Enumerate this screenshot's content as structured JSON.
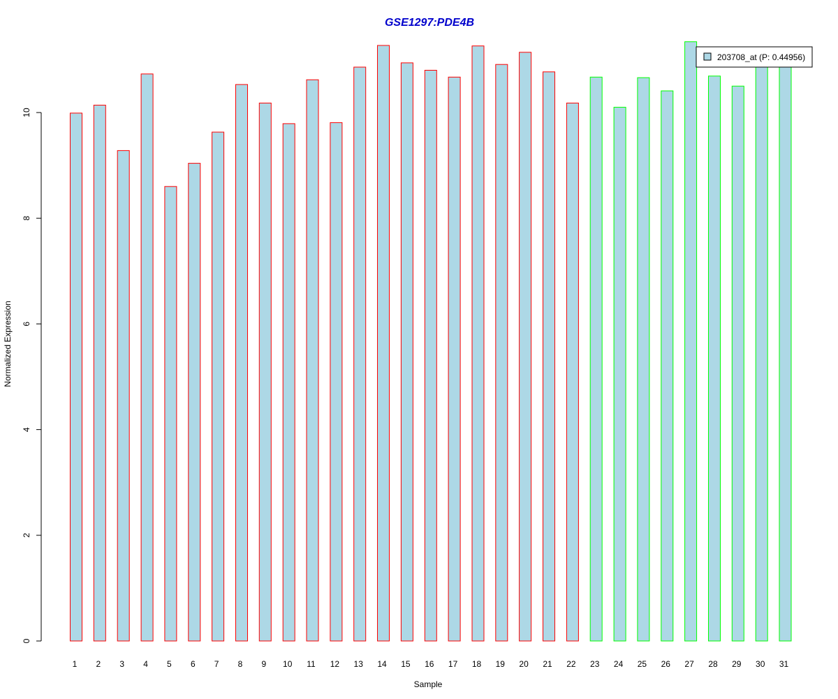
{
  "chart_data": {
    "type": "bar",
    "title": "GSE1297:PDE4B",
    "xlabel": "Sample",
    "ylabel": "Normalized Expression",
    "ylim": [
      0,
      11.5
    ],
    "yticks": [
      0,
      2,
      4,
      6,
      8,
      10
    ],
    "grid": false,
    "categories": [
      "1",
      "2",
      "3",
      "4",
      "5",
      "6",
      "7",
      "8",
      "9",
      "10",
      "11",
      "12",
      "13",
      "14",
      "15",
      "16",
      "17",
      "18",
      "19",
      "20",
      "21",
      "22",
      "23",
      "24",
      "25",
      "26",
      "27",
      "28",
      "29",
      "30",
      "31"
    ],
    "values": [
      9.99,
      10.14,
      9.28,
      10.73,
      8.6,
      9.04,
      9.63,
      10.53,
      10.18,
      9.79,
      10.62,
      9.81,
      10.86,
      11.27,
      10.94,
      10.8,
      10.67,
      11.26,
      10.91,
      11.14,
      10.77,
      10.18,
      10.67,
      10.1,
      10.66,
      10.41,
      11.34,
      10.69,
      10.5,
      10.89,
      10.95
    ],
    "bar_fill": "#add8e6",
    "group_border_colors": [
      "#ff0000",
      "#ff0000",
      "#ff0000",
      "#ff0000",
      "#ff0000",
      "#ff0000",
      "#ff0000",
      "#ff0000",
      "#ff0000",
      "#ff0000",
      "#ff0000",
      "#ff0000",
      "#ff0000",
      "#ff0000",
      "#ff0000",
      "#ff0000",
      "#ff0000",
      "#ff0000",
      "#ff0000",
      "#ff0000",
      "#ff0000",
      "#ff0000",
      "#00ff00",
      "#00ff00",
      "#00ff00",
      "#00ff00",
      "#00ff00",
      "#00ff00",
      "#00ff00",
      "#00ff00",
      "#00ff00"
    ],
    "title_color": "#0000cc",
    "legend": {
      "placement": "top-right",
      "entries": [
        {
          "label": "203708_at (P: 0.44956)",
          "color": "#add8e6"
        }
      ]
    }
  }
}
